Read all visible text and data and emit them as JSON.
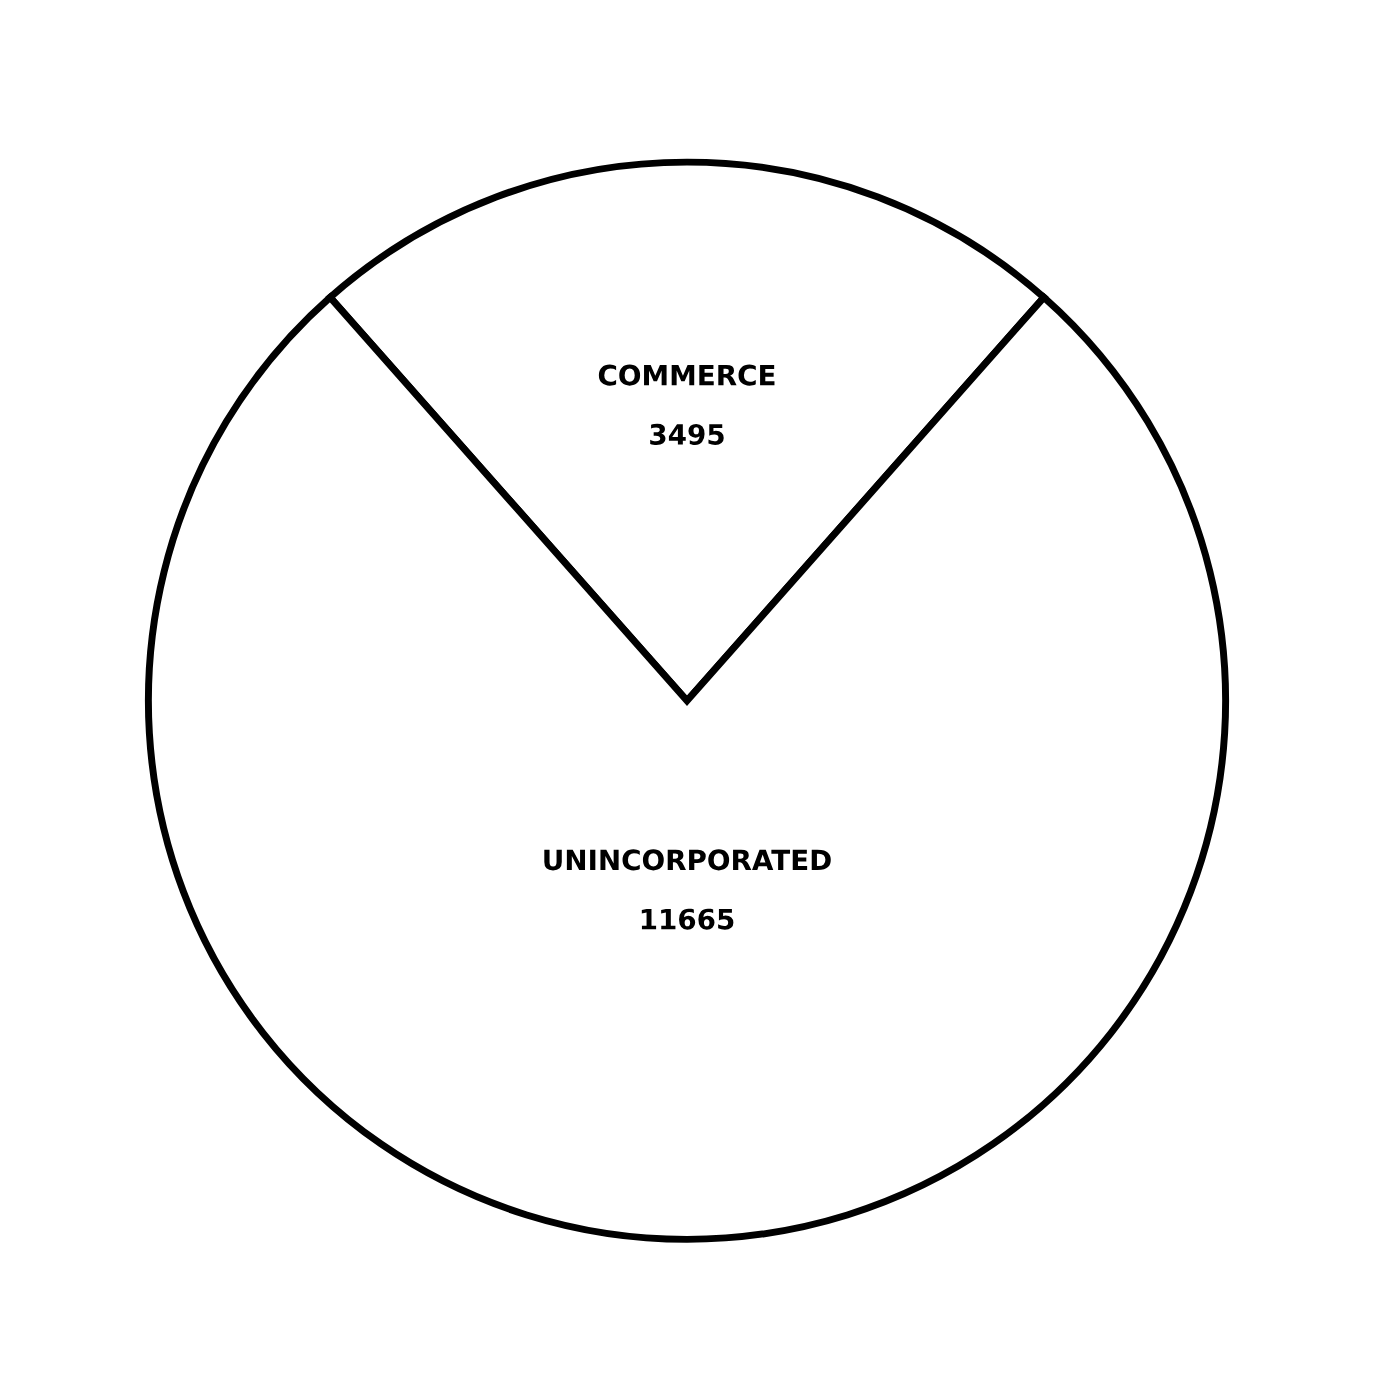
{
  "chart_data": {
    "type": "pie",
    "categories": [
      "COMMERCE",
      "UNINCORPORATED"
    ],
    "values": [
      3495,
      11665
    ],
    "colors": [
      "#ffffff",
      "#ffffff"
    ],
    "data_labels": true
  }
}
